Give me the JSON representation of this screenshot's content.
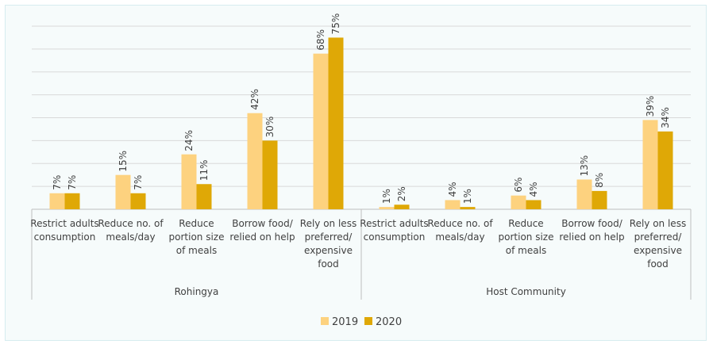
{
  "chart_data": {
    "type": "bar",
    "title": "",
    "ylim": [
      0,
      80
    ],
    "grid": true,
    "legend_position": "bottom",
    "groups": [
      {
        "name": "Rohingya",
        "categories": [
          [
            "Restrict adults",
            "consumption"
          ],
          [
            "Reduce no. of",
            "meals/day"
          ],
          [
            "Reduce",
            "portion size",
            "of meals"
          ],
          [
            "Borrow food/",
            "relied on help"
          ],
          [
            "Rely on less",
            "preferred/",
            "expensive",
            "food"
          ]
        ]
      },
      {
        "name": "Host Community",
        "categories": [
          [
            "Restrict adults",
            "consumption"
          ],
          [
            "Reduce no. of",
            "meals/day"
          ],
          [
            "Reduce",
            "portion size",
            "of meals"
          ],
          [
            "Borrow food/",
            "relied on help"
          ],
          [
            "Rely on less",
            "preferred/",
            "expensive",
            "food"
          ]
        ]
      }
    ],
    "series": [
      {
        "name": "2019",
        "color": "#fdd27f",
        "values": [
          7,
          15,
          24,
          42,
          68,
          1,
          4,
          6,
          13,
          39
        ],
        "labels": [
          "7%",
          "15%",
          "24%",
          "42%",
          "68%",
          "1%",
          "4%",
          "6%",
          "13%",
          "39%"
        ]
      },
      {
        "name": "2020",
        "color": "#dfa806",
        "values": [
          7,
          7,
          11,
          30,
          75,
          2,
          1,
          4,
          8,
          34
        ],
        "labels": [
          "7%",
          "7%",
          "11%",
          "30%",
          "75%",
          "2%",
          "1%",
          "4%",
          "8%",
          "34%"
        ]
      }
    ]
  }
}
